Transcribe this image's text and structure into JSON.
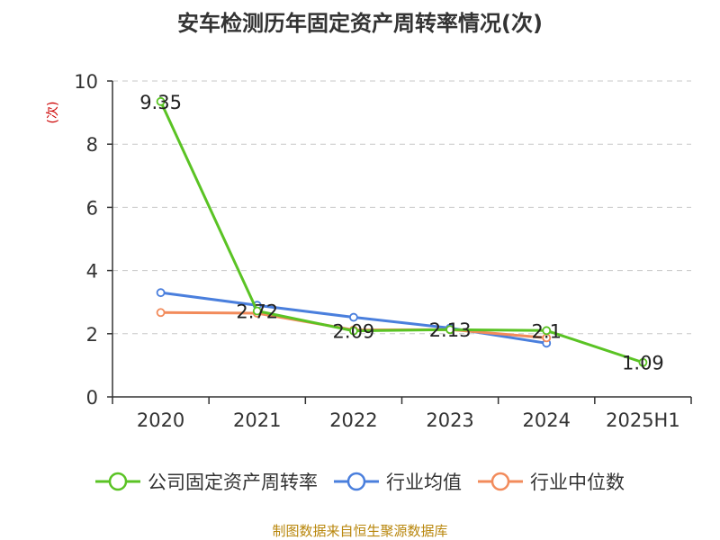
{
  "title": "安车检测历年固定资产周转率情况(次)",
  "footer": "制图数据来自恒生聚源数据库",
  "chart_data": {
    "type": "line",
    "title": "安车检测历年固定资产周转率情况(次)",
    "ylabel": "(次)",
    "xlabel": "",
    "categories": [
      "2020",
      "2021",
      "2022",
      "2023",
      "2024",
      "2025H1"
    ],
    "ylim": [
      0,
      10
    ],
    "yticks": [
      0,
      2,
      4,
      6,
      8,
      10
    ],
    "grid": true,
    "legend_position": "bottom",
    "series": [
      {
        "name": "公司固定资产周转率",
        "color": "#5ac324",
        "values": [
          9.35,
          2.72,
          2.09,
          2.13,
          2.1,
          1.09
        ],
        "data_labels": [
          "9.35",
          "2.72",
          "2.09",
          "2.13",
          "2.1",
          "1.09"
        ]
      },
      {
        "name": "行业均值",
        "color": "#4a7fdd",
        "values": [
          3.3,
          2.9,
          2.52,
          2.18,
          1.7,
          null
        ]
      },
      {
        "name": "行业中位数",
        "color": "#f28b5b",
        "values": [
          2.67,
          2.65,
          2.12,
          2.13,
          1.87,
          null
        ]
      }
    ]
  }
}
